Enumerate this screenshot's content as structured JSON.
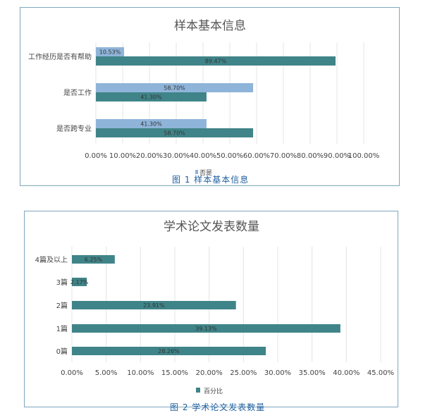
{
  "charts": [
    {
      "chart_data": {
        "type": "bar",
        "orientation": "horizontal",
        "title": "样本基本信息",
        "categories": [
          "工作经历是否有帮助",
          "是否工作",
          "是否跨专业"
        ],
        "series": [
          {
            "name": "否",
            "color": "#8fb4d9",
            "values": [
              10.53,
              58.7,
              41.3
            ],
            "labels": [
              "10.53%",
              "58.70%",
              "41.30%"
            ]
          },
          {
            "name": "是",
            "color": "#3f8488",
            "values": [
              89.47,
              41.3,
              58.7
            ],
            "labels": [
              "89.47%",
              "41.30%",
              "58.70%"
            ]
          }
        ],
        "xlim": [
          0,
          100
        ],
        "xticks": [
          "0.00%",
          "10.00%",
          "20.00%",
          "30.00%",
          "40.00%",
          "50.00%",
          "60.00%",
          "70.00%",
          "80.00%",
          "90.00%",
          "100.00%"
        ],
        "grid": true,
        "legend": "bottom",
        "legend_text": "否是"
      },
      "caption": "图 1 样本基本信息"
    },
    {
      "chart_data": {
        "type": "bar",
        "orientation": "horizontal",
        "title": "学术论文发表数量",
        "categories": [
          "4篇及以上",
          "3篇",
          "2篇",
          "1篇",
          "0篇"
        ],
        "series": [
          {
            "name": "百分比",
            "color": "#3f8488",
            "values": [
              6.25,
              2.17,
              23.91,
              39.13,
              28.26
            ],
            "labels": [
              "6.25%",
              "2.17%",
              "23.91%",
              "39.13%",
              "28.26%"
            ]
          }
        ],
        "xlim": [
          0,
          45
        ],
        "xticks": [
          "0.00%",
          "5.00%",
          "10.00%",
          "15.00%",
          "20.00%",
          "25.00%",
          "30.00%",
          "35.00%",
          "40.00%",
          "45.00%"
        ],
        "grid": true,
        "legend": "bottom"
      },
      "caption": "图 2 学术论文发表数量"
    }
  ]
}
